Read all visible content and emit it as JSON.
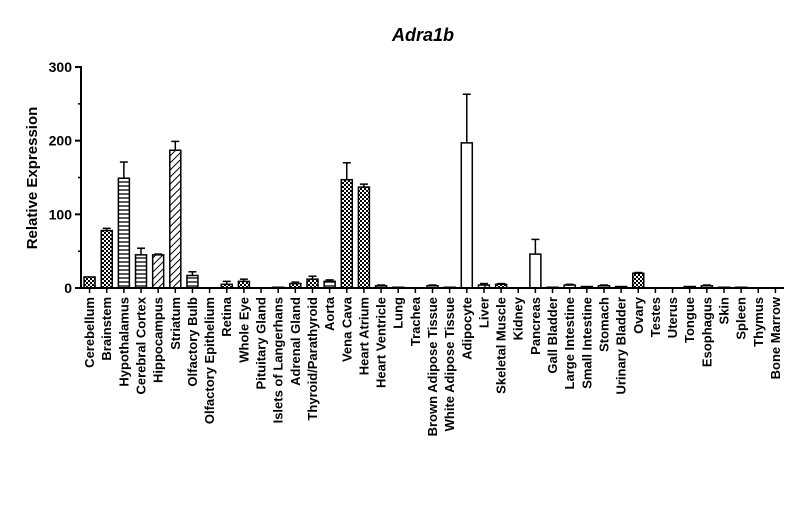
{
  "chart_data": {
    "type": "bar",
    "title": "Adra1b",
    "xlabel": "",
    "ylabel": "Relative Expression",
    "ylim": [
      0,
      300
    ],
    "yticks": [
      0,
      100,
      200,
      300
    ],
    "grid": false,
    "legend": "none",
    "categories": [
      "Cerebellum",
      "Brainstem",
      "Hypothalamus",
      "Cerebral Cortex",
      "Hippocampus",
      "Striatum",
      "Olfactory Bulb",
      "Olfactory Epithelium",
      "Retina",
      "Whole Eye",
      "Pituitary Gland",
      "Islets of Langerhans",
      "Adrenal Gland",
      "Thyroid/Parathyroid",
      "Aorta",
      "Vena Cava",
      "Heart Atrium",
      "Heart Ventricle",
      "Lung",
      "Trachea",
      "Brown Adipose Tissue",
      "White Adipose Tissue",
      "Adipocyte",
      "Liver",
      "Skeletal Muscle",
      "Kidney",
      "Pancreas",
      "Gall Bladder",
      "Large Intestine",
      "Small Intestine",
      "Stomach",
      "Urinary Bladder",
      "Ovary",
      "Testes",
      "Uterus",
      "Tongue",
      "Esophagus",
      "Skin",
      "Spleen",
      "Thymus",
      "Bone Marrow"
    ],
    "values": [
      15,
      78,
      149,
      45,
      45,
      187,
      17,
      0,
      5,
      9,
      0,
      1,
      6,
      12,
      9,
      147,
      137,
      3,
      1,
      0,
      3,
      1,
      197,
      4,
      5,
      0,
      46,
      1,
      4,
      2,
      3,
      2,
      20,
      0,
      0,
      2,
      3,
      1,
      1,
      0,
      0
    ],
    "errors": [
      0,
      3,
      22,
      9,
      1,
      12,
      5,
      0,
      4,
      3,
      0,
      0,
      2,
      4,
      2,
      23,
      4,
      1,
      0,
      0,
      1,
      0,
      66,
      2,
      1,
      0,
      20,
      0,
      1,
      0,
      1,
      0,
      1,
      0,
      0,
      0,
      1,
      0,
      0,
      0,
      0
    ],
    "patterns": [
      "checker",
      "checker",
      "hlines",
      "hlines",
      "diagonal",
      "diagonal",
      "hlines",
      "solid",
      "checker",
      "checker",
      "diagonal",
      "solid",
      "checker",
      "checker",
      "hlines",
      "checker",
      "checker",
      "hlines",
      "hlines",
      "solid",
      "solid",
      "solid",
      "solid",
      "diagonal",
      "checker",
      "checker",
      "solid",
      "grid",
      "solid",
      "checker",
      "solid",
      "checker",
      "checker",
      "vlines",
      "solid",
      "solid",
      "solid",
      "checker",
      "solid",
      "solid",
      "solid"
    ],
    "colors": {
      "bar_stroke": "#000000",
      "axis": "#000000",
      "text": "#000000",
      "background": "#ffffff"
    }
  }
}
